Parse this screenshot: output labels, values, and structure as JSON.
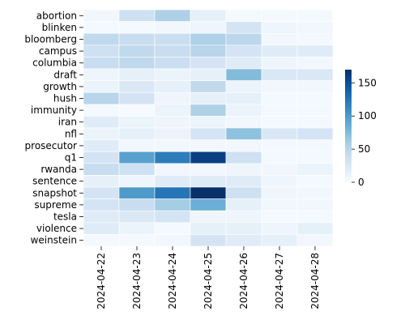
{
  "chart_data": {
    "type": "heatmap",
    "title": "",
    "xlabel": "",
    "ylabel": "",
    "rows": [
      "abortion",
      "blinken",
      "bloomberg",
      "campus",
      "columbia",
      "draft",
      "growth",
      "hush",
      "immunity",
      "iran",
      "nfl",
      "prosecutor",
      "q1",
      "rwanda",
      "sentence",
      "snapshot",
      "supreme",
      "tesla",
      "violence",
      "weinstein"
    ],
    "columns": [
      "2024-04-22",
      "2024-04-23",
      "2024-04-24",
      "2024-04-25",
      "2024-04-26",
      "2024-04-27",
      "2024-04-28"
    ],
    "values": [
      [
        5,
        35,
        55,
        15,
        3,
        3,
        3
      ],
      [
        3,
        3,
        5,
        8,
        30,
        8,
        5
      ],
      [
        45,
        40,
        38,
        55,
        48,
        5,
        3
      ],
      [
        35,
        45,
        40,
        50,
        30,
        20,
        20
      ],
      [
        40,
        45,
        38,
        30,
        20,
        8,
        5
      ],
      [
        8,
        15,
        10,
        15,
        75,
        25,
        25
      ],
      [
        10,
        25,
        15,
        45,
        10,
        5,
        5
      ],
      [
        50,
        30,
        8,
        15,
        15,
        3,
        3
      ],
      [
        3,
        1,
        10,
        55,
        10,
        3,
        3
      ],
      [
        20,
        10,
        8,
        10,
        5,
        3,
        3
      ],
      [
        10,
        15,
        10,
        30,
        70,
        25,
        30
      ],
      [
        20,
        5,
        5,
        5,
        5,
        3,
        3
      ],
      [
        30,
        95,
        120,
        160,
        35,
        3,
        3
      ],
      [
        40,
        35,
        5,
        5,
        8,
        5,
        10
      ],
      [
        15,
        8,
        20,
        20,
        20,
        8,
        3
      ],
      [
        30,
        100,
        125,
        170,
        35,
        8,
        5
      ],
      [
        30,
        40,
        60,
        85,
        15,
        5,
        5
      ],
      [
        20,
        25,
        30,
        8,
        8,
        3,
        3
      ],
      [
        20,
        10,
        3,
        15,
        15,
        8,
        15
      ],
      [
        3,
        3,
        5,
        30,
        20,
        15,
        5
      ]
    ],
    "colorbar": {
      "ticks": [
        0,
        50,
        100,
        150
      ],
      "min": 0,
      "max": 170,
      "colormap": "Blues"
    },
    "grid": false,
    "cell_border_color": "#ffffff"
  }
}
